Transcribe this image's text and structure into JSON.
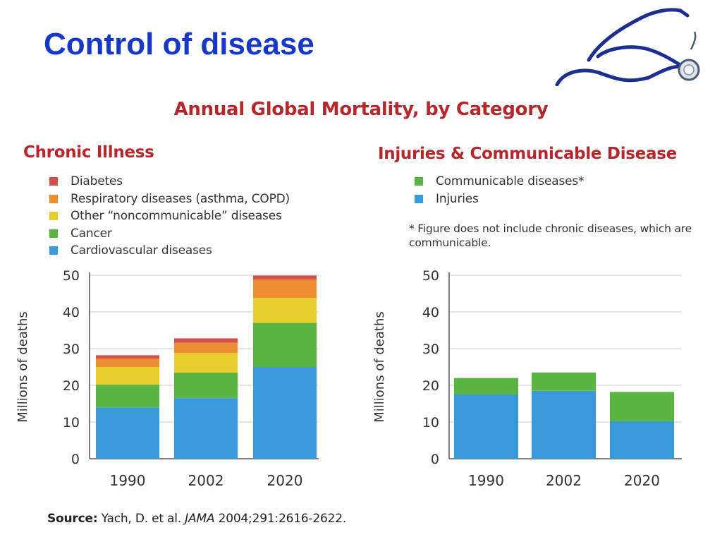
{
  "slide": {
    "title": "Control of disease"
  },
  "figure": {
    "title": "Annual Global Mortality, by Category",
    "source_label": "Source:",
    "source_authors": "Yach, D. et al.",
    "source_journal": "JAMA",
    "source_citation": "2004;291:2616-2622."
  },
  "chart_data": [
    {
      "type": "bar",
      "stacked": true,
      "title": "Chronic Illness",
      "categories": [
        "1990",
        "2002",
        "2020"
      ],
      "ylabel": "Millions of deaths",
      "ylim": [
        0,
        50
      ],
      "yticks": [
        0,
        10,
        20,
        30,
        40,
        50
      ],
      "grid": true,
      "series": [
        {
          "name": "Cardiovascular diseases",
          "color": "#3a9ad9",
          "values": [
            14,
            16.5,
            25
          ]
        },
        {
          "name": "Cancer",
          "color": "#5bb543",
          "values": [
            6.2,
            7,
            12
          ]
        },
        {
          "name": "Other “noncommunicable” diseases",
          "color": "#e6cf2b",
          "values": [
            4.8,
            5.3,
            6.8
          ]
        },
        {
          "name": "Respiratory diseases (asthma, COPD)",
          "color": "#ee8e33",
          "values": [
            2.3,
            2.8,
            5
          ]
        },
        {
          "name": "Diabetes",
          "color": "#d2504a",
          "values": [
            0.9,
            1.2,
            1.1
          ]
        }
      ],
      "legend_order": [
        4,
        3,
        2,
        1,
        0
      ]
    },
    {
      "type": "bar",
      "stacked": true,
      "title": "Injuries & Communicable Disease",
      "categories": [
        "1990",
        "2002",
        "2020"
      ],
      "ylabel": "Millions of deaths",
      "ylim": [
        0,
        50
      ],
      "yticks": [
        0,
        10,
        20,
        30,
        40,
        50
      ],
      "grid": true,
      "series": [
        {
          "name": "Injuries",
          "color": "#3a9ad9",
          "values": [
            17.5,
            18.5,
            10.2
          ]
        },
        {
          "name": "Communicable diseases*",
          "color": "#5bb543",
          "values": [
            4.5,
            5,
            8
          ]
        }
      ],
      "legend_order": [
        1,
        0
      ],
      "footnote": "* Figure does not include chronic diseases, which are communicable."
    }
  ]
}
